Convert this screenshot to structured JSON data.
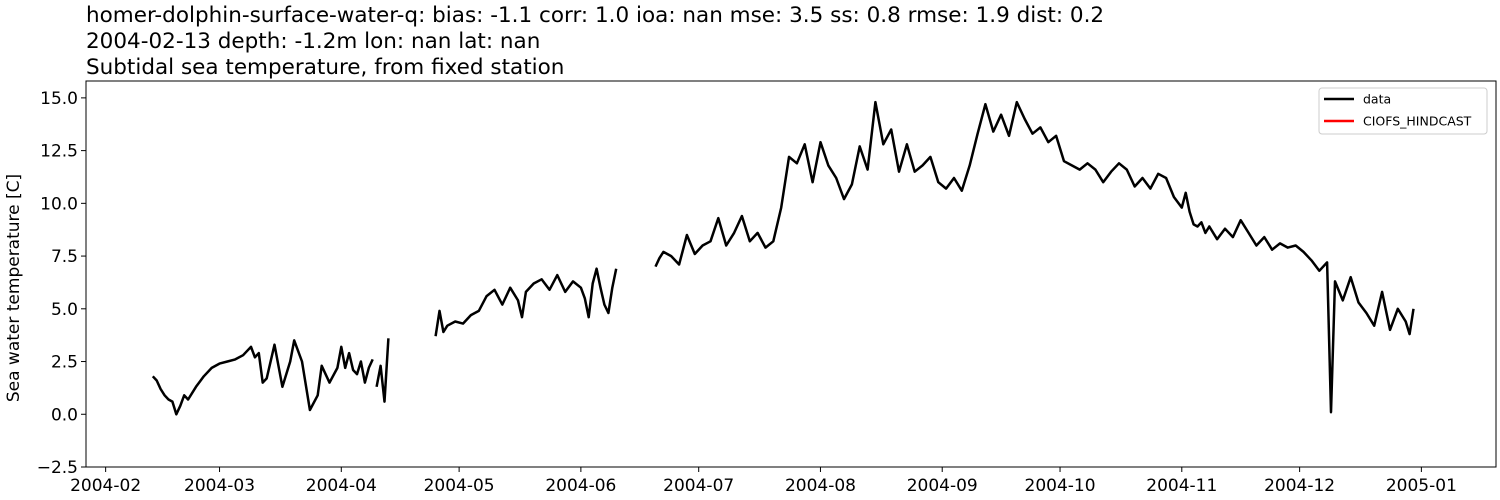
{
  "chart_data": {
    "type": "line",
    "title_lines": [
      "homer-dolphin-surface-water-q: bias: -1.1  corr: 1.0  ioa: nan  mse: 3.5  ss: 0.8  rmse: 1.9  dist: 0.2",
      "2004-02-13 depth: -1.2m lon: nan lat: nan",
      "Subtidal sea temperature, from fixed station"
    ],
    "xlabel": "",
    "ylabel": "Sea water temperature [C]",
    "xlim": [
      "2004-01-27",
      "2005-01-20"
    ],
    "ylim": [
      -2.5,
      15.8
    ],
    "yticks": [
      -2.5,
      0.0,
      2.5,
      5.0,
      7.5,
      10.0,
      12.5,
      15.0
    ],
    "ytick_labels": [
      "−2.5",
      "0.0",
      "2.5",
      "5.0",
      "7.5",
      "10.0",
      "12.5",
      "15.0"
    ],
    "xticks": [
      "2004-02-01",
      "2004-03-01",
      "2004-04-01",
      "2004-05-01",
      "2004-06-01",
      "2004-07-01",
      "2004-08-01",
      "2004-09-01",
      "2004-10-01",
      "2004-11-01",
      "2004-12-01",
      "2005-01-01"
    ],
    "xtick_labels": [
      "2004-02",
      "2004-03",
      "2004-04",
      "2004-05",
      "2004-06",
      "2004-07",
      "2004-08",
      "2004-09",
      "2004-10",
      "2004-11",
      "2004-12",
      "2005-01"
    ],
    "grid": false,
    "legend_position": "top-right",
    "series": [
      {
        "name": "data",
        "color": "#000000",
        "segments": [
          {
            "x": [
              "2004-02-13",
              "2004-02-14",
              "2004-02-15",
              "2004-02-16",
              "2004-02-17",
              "2004-02-18",
              "2004-02-19",
              "2004-02-20",
              "2004-02-21",
              "2004-02-22",
              "2004-02-24",
              "2004-02-26",
              "2004-02-28",
              "2004-03-01",
              "2004-03-03",
              "2004-03-05",
              "2004-03-07",
              "2004-03-09",
              "2004-03-10",
              "2004-03-11",
              "2004-03-12",
              "2004-03-13",
              "2004-03-15",
              "2004-03-17",
              "2004-03-19",
              "2004-03-20",
              "2004-03-22",
              "2004-03-24",
              "2004-03-26",
              "2004-03-27",
              "2004-03-29",
              "2004-03-31",
              "2004-04-01",
              "2004-04-02",
              "2004-04-03",
              "2004-04-04",
              "2004-04-05",
              "2004-04-06",
              "2004-04-07",
              "2004-04-08",
              "2004-04-09"
            ],
            "y": [
              1.8,
              1.6,
              1.2,
              0.9,
              0.7,
              0.6,
              0.0,
              0.4,
              0.9,
              0.7,
              1.3,
              1.8,
              2.2,
              2.4,
              2.5,
              2.6,
              2.8,
              3.2,
              2.7,
              2.9,
              1.5,
              1.7,
              3.3,
              1.3,
              2.5,
              3.5,
              2.5,
              0.2,
              0.9,
              2.3,
              1.5,
              2.2,
              3.2,
              2.2,
              2.9,
              2.1,
              1.9,
              2.5,
              1.5,
              2.2,
              2.6
            ]
          },
          {
            "x": [
              "2004-04-10",
              "2004-04-11",
              "2004-04-12",
              "2004-04-13"
            ],
            "y": [
              1.3,
              2.3,
              0.6,
              3.6
            ]
          },
          {
            "x": [
              "2004-04-25",
              "2004-04-26",
              "2004-04-27",
              "2004-04-28",
              "2004-04-30",
              "2004-05-02",
              "2004-05-04",
              "2004-05-06",
              "2004-05-08",
              "2004-05-10",
              "2004-05-12",
              "2004-05-14",
              "2004-05-16",
              "2004-05-17",
              "2004-05-18",
              "2004-05-20",
              "2004-05-22",
              "2004-05-24",
              "2004-05-26",
              "2004-05-28",
              "2004-05-30",
              "2004-06-01",
              "2004-06-02",
              "2004-06-03",
              "2004-06-04",
              "2004-06-05",
              "2004-06-06",
              "2004-06-07",
              "2004-06-08",
              "2004-06-09",
              "2004-06-10"
            ],
            "y": [
              3.7,
              4.9,
              3.9,
              4.2,
              4.4,
              4.3,
              4.7,
              4.9,
              5.6,
              5.9,
              5.2,
              6.0,
              5.4,
              4.6,
              5.8,
              6.2,
              6.4,
              5.9,
              6.6,
              5.8,
              6.3,
              6.0,
              5.5,
              4.6,
              6.2,
              6.9,
              6.0,
              5.2,
              4.8,
              6.0,
              6.9
            ]
          },
          {
            "x": [
              "2004-06-20",
              "2004-06-21",
              "2004-06-22",
              "2004-06-24",
              "2004-06-26",
              "2004-06-28",
              "2004-06-30",
              "2004-07-02",
              "2004-07-04",
              "2004-07-06",
              "2004-07-08",
              "2004-07-10",
              "2004-07-12",
              "2004-07-14",
              "2004-07-16",
              "2004-07-18",
              "2004-07-20",
              "2004-07-22",
              "2004-07-24",
              "2004-07-26",
              "2004-07-28",
              "2004-07-30",
              "2004-08-01",
              "2004-08-03",
              "2004-08-05",
              "2004-08-07",
              "2004-08-09",
              "2004-08-11",
              "2004-08-13",
              "2004-08-15",
              "2004-08-17",
              "2004-08-19",
              "2004-08-21",
              "2004-08-23",
              "2004-08-25",
              "2004-08-27",
              "2004-08-29",
              "2004-08-31",
              "2004-09-02",
              "2004-09-04",
              "2004-09-06",
              "2004-09-08",
              "2004-09-10",
              "2004-09-12",
              "2004-09-14",
              "2004-09-16",
              "2004-09-18",
              "2004-09-20",
              "2004-09-22",
              "2004-09-24",
              "2004-09-26",
              "2004-09-28",
              "2004-09-30",
              "2004-10-02",
              "2004-10-04",
              "2004-10-06",
              "2004-10-08",
              "2004-10-10",
              "2004-10-12",
              "2004-10-14",
              "2004-10-16",
              "2004-10-18",
              "2004-10-20",
              "2004-10-22",
              "2004-10-24",
              "2004-10-26",
              "2004-10-28",
              "2004-10-30",
              "2004-11-01",
              "2004-11-02",
              "2004-11-03",
              "2004-11-04",
              "2004-11-05",
              "2004-11-06",
              "2004-11-07",
              "2004-11-08",
              "2004-11-10",
              "2004-11-12",
              "2004-11-14",
              "2004-11-16",
              "2004-11-18",
              "2004-11-20",
              "2004-11-22",
              "2004-11-24",
              "2004-11-26",
              "2004-11-28",
              "2004-11-30",
              "2004-12-02",
              "2004-12-04",
              "2004-12-06",
              "2004-12-08",
              "2004-12-09",
              "2004-12-10",
              "2004-12-12",
              "2004-12-14",
              "2004-12-16",
              "2004-12-18",
              "2004-12-20",
              "2004-12-22",
              "2004-12-24",
              "2004-12-26",
              "2004-12-28",
              "2004-12-29",
              "2004-12-30"
            ],
            "y": [
              7.0,
              7.4,
              7.7,
              7.5,
              7.1,
              8.5,
              7.6,
              8.0,
              8.2,
              9.3,
              8.0,
              8.6,
              9.4,
              8.2,
              8.6,
              7.9,
              8.2,
              9.8,
              12.2,
              11.9,
              12.8,
              11.0,
              12.9,
              11.8,
              11.2,
              10.2,
              10.9,
              12.7,
              11.6,
              14.8,
              12.8,
              13.5,
              11.5,
              12.8,
              11.5,
              11.8,
              12.2,
              11.0,
              10.7,
              11.2,
              10.6,
              11.8,
              13.3,
              14.7,
              13.4,
              14.2,
              13.2,
              14.8,
              14.0,
              13.3,
              13.6,
              12.9,
              13.2,
              12.0,
              11.8,
              11.6,
              11.9,
              11.6,
              11.0,
              11.5,
              11.9,
              11.6,
              10.8,
              11.2,
              10.7,
              11.4,
              11.2,
              10.3,
              9.8,
              10.5,
              9.6,
              9.0,
              8.9,
              9.1,
              8.6,
              8.9,
              8.3,
              8.8,
              8.4,
              9.2,
              8.6,
              8.0,
              8.4,
              7.8,
              8.1,
              7.9,
              8.0,
              7.7,
              7.3,
              6.8,
              7.2,
              0.1,
              6.3,
              5.4,
              6.5,
              5.3,
              4.8,
              4.2,
              5.8,
              4.0,
              5.0,
              4.4,
              3.8,
              5.0
            ],
            "date_offset_note": ""
          }
        ]
      },
      {
        "name": "CIOFS_HINDCAST",
        "color": "#ff0000",
        "segments": [
          {
            "x": [],
            "y": []
          }
        ]
      }
    ]
  }
}
